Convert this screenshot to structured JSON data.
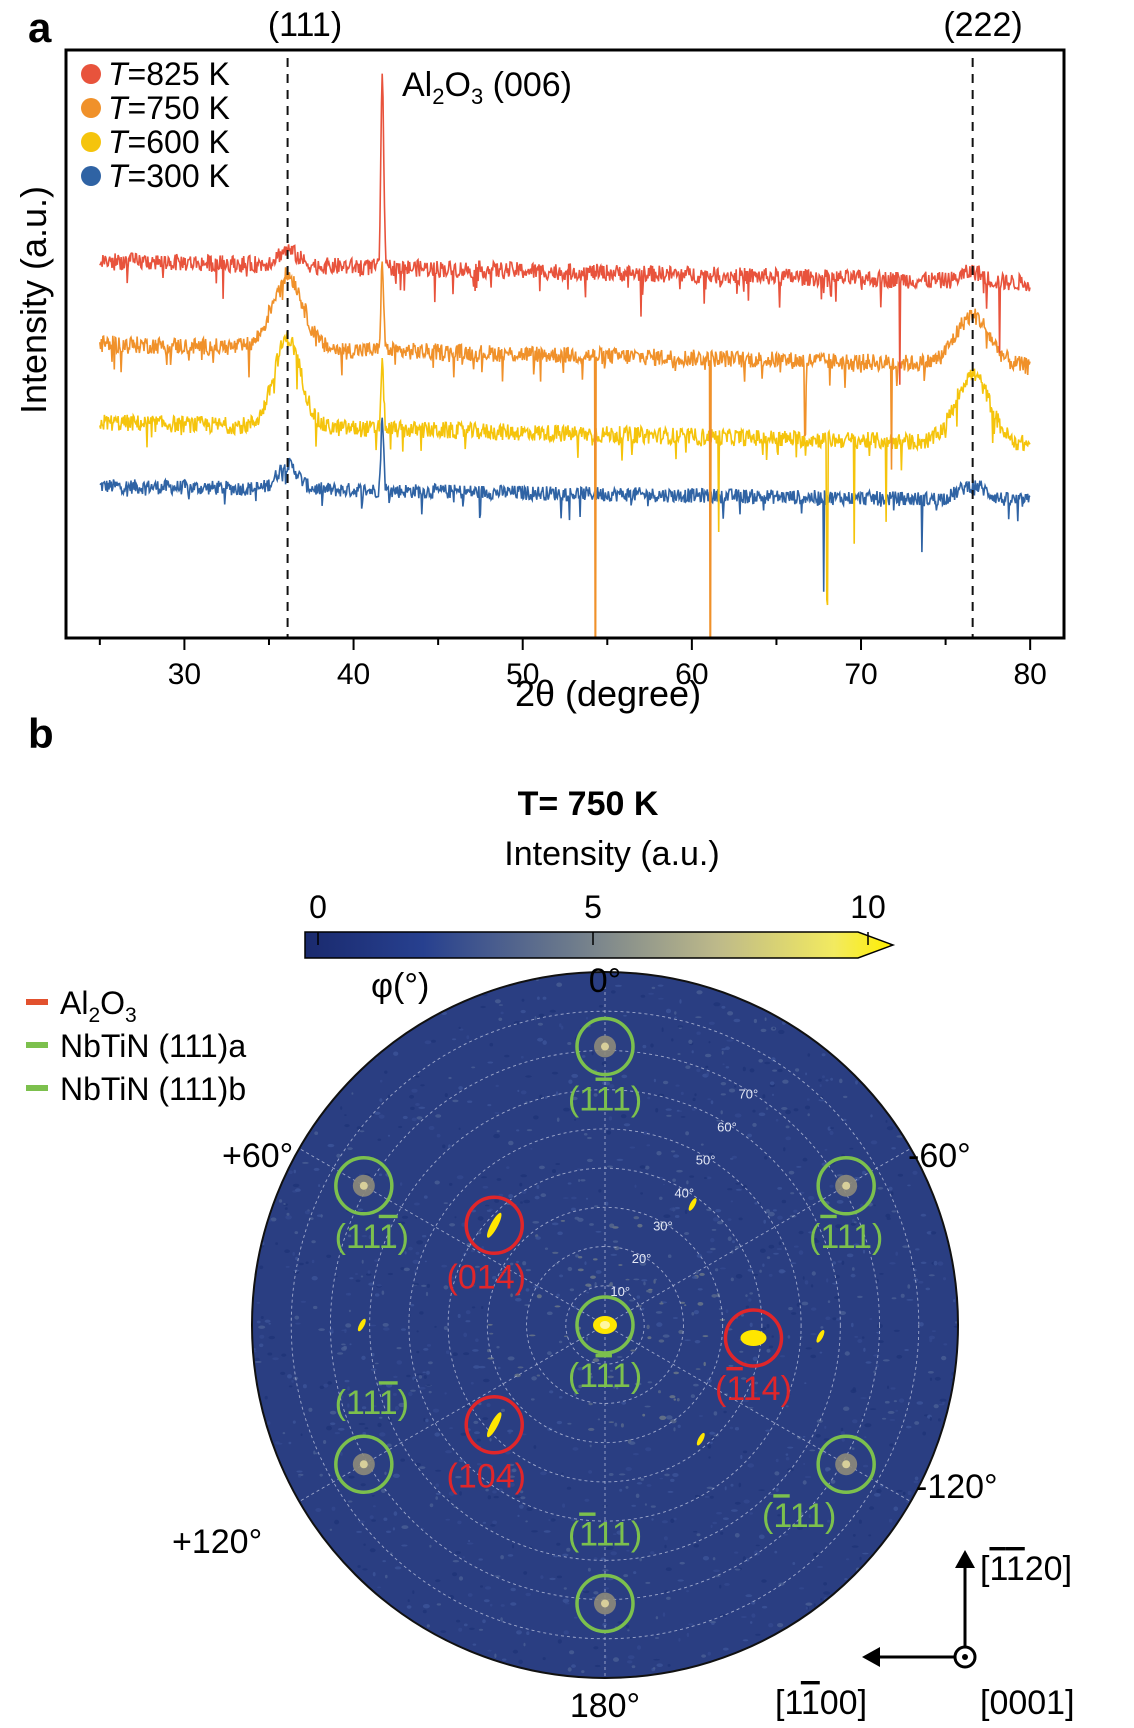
{
  "panel_a": {
    "label": "a",
    "ylabel": "Intensity (a.u.)",
    "xlabel": "2θ (degree)",
    "peak_label_111": "(111)",
    "peak_label_222": "(222)",
    "substrate_peak": {
      "base": "Al",
      "sub1": "2",
      "mid": "O",
      "sub2": "3",
      "tail": " (006)"
    }
  },
  "chart_data": [
    {
      "type": "line",
      "title": "",
      "xlabel": "2θ (degree)",
      "ylabel": "Intensity (a.u.)",
      "xlim": [
        23,
        82
      ],
      "xticks": [
        30,
        40,
        50,
        60,
        70,
        80
      ],
      "yticks_visible": false,
      "reference_lines": [
        {
          "x": 36.1,
          "label": "(111)"
        },
        {
          "x": 76.6,
          "label": "(222)"
        }
      ],
      "legend": "top-left",
      "series": [
        {
          "name": "T=825 K",
          "italic_prefix": "T",
          "rest": "=825 K",
          "color": "#e8533c",
          "baseline": 6.2,
          "slope": -0.45,
          "noise": 0.35,
          "peaks": [
            {
              "x": 36.1,
              "h": 0.3,
              "w": 0.6
            },
            {
              "x": 41.7,
              "h": 4.0,
              "w": 0.08
            },
            {
              "x": 76.6,
              "h": 0.2,
              "w": 0.6
            }
          ],
          "dips": [
            {
              "x": 72.3,
              "d": 2.0
            },
            {
              "x": 78.2,
              "d": 1.4
            },
            {
              "x": 57.0,
              "d": 0.9
            }
          ]
        },
        {
          "name": "T=750 K",
          "italic_prefix": "T",
          "rest": "=750 K",
          "color": "#f0912a",
          "baseline": 4.5,
          "slope": -0.45,
          "noise": 0.35,
          "peaks": [
            {
              "x": 36.1,
              "h": 1.5,
              "w": 0.9
            },
            {
              "x": 41.7,
              "h": 1.8,
              "w": 0.08
            },
            {
              "x": 76.6,
              "h": 1.0,
              "w": 1.0
            }
          ],
          "dips": [
            {
              "x": 54.3,
              "d": 8.6
            },
            {
              "x": 61.1,
              "d": 8.2
            },
            {
              "x": 66.7,
              "d": 1.6
            },
            {
              "x": 71.8,
              "d": 2.2
            }
          ]
        },
        {
          "name": "T=600 K",
          "italic_prefix": "T",
          "rest": "=600 K",
          "color": "#f5c40c",
          "baseline": 2.9,
          "slope": -0.45,
          "noise": 0.35,
          "peaks": [
            {
              "x": 36.1,
              "h": 1.8,
              "w": 0.8
            },
            {
              "x": 41.7,
              "h": 1.3,
              "w": 0.08
            },
            {
              "x": 76.6,
              "h": 1.4,
              "w": 1.0
            }
          ],
          "dips": [
            {
              "x": 61.6,
              "d": 2.0
            },
            {
              "x": 68.0,
              "d": 3.2
            },
            {
              "x": 69.6,
              "d": 2.2
            },
            {
              "x": 71.5,
              "d": 1.8
            }
          ]
        },
        {
          "name": "T=300 K",
          "italic_prefix": "T",
          "rest": "=300 K",
          "color": "#2f63a4",
          "baseline": 1.6,
          "slope": -0.3,
          "noise": 0.3,
          "peaks": [
            {
              "x": 36.1,
              "h": 0.5,
              "w": 0.6
            },
            {
              "x": 41.7,
              "h": 1.5,
              "w": 0.08
            },
            {
              "x": 76.6,
              "h": 0.3,
              "w": 0.8
            }
          ],
          "dips": [
            {
              "x": 67.8,
              "d": 1.8
            },
            {
              "x": 73.6,
              "d": 1.2
            }
          ]
        }
      ]
    },
    {
      "type": "heatmap",
      "subtype": "pole-figure",
      "title": "T= 750 K",
      "colorbar_label": "Intensity (a.u.)",
      "colorbar_range": [
        0,
        10
      ],
      "colorbar_ticks": [
        "0",
        "5",
        "10"
      ],
      "colormap": [
        "#1a2a6e",
        "#27408f",
        "#6c7a8c",
        "#bdb98a",
        "#f2ea60",
        "#ffee00"
      ],
      "background_color": "#2a3e82",
      "rotation_label": "φ(°)",
      "psi_ring_labels": [
        "10°",
        "20°",
        "30°",
        "40°",
        "50°",
        "60°",
        "70°"
      ],
      "phi_labels": {
        "top": "0°",
        "left60": "+60°",
        "right60": "-60°",
        "left120": "+120°",
        "right120": "-120°",
        "bottom": "180°"
      },
      "legend": "top-left",
      "legend_items": [
        {
          "label_base": "Al",
          "sub1": "2",
          "mid": "O",
          "sub2": "3",
          "color": "#e2512e"
        },
        {
          "label": "NbTiN (111)a",
          "color": "#7cc04d"
        },
        {
          "label": "NbTiN (111)b",
          "color": "#7cc04d"
        }
      ],
      "poles": [
        {
          "family": "NbTiN",
          "label_html": "(1<tspan text-decoration='overline'>1</tspan>1)",
          "label_plain": "(111)",
          "psi": 71,
          "phi": 0,
          "circle": "green"
        },
        {
          "family": "NbTiN",
          "label_html": "(11<tspan text-decoration='overline'>1</tspan>)",
          "label_plain": "(111)",
          "psi": 71,
          "phi": 60,
          "circle": "green"
        },
        {
          "family": "NbTiN",
          "label_html": "(<tspan text-decoration='overline'>1</tspan>11)",
          "label_plain": "(111)",
          "psi": 71,
          "phi": -60,
          "circle": "green"
        },
        {
          "family": "NbTiN",
          "label_html": "(1<tspan text-decoration='overline'>1</tspan>1)",
          "label_plain": "(111)",
          "psi": 0,
          "phi": 0,
          "circle": "green"
        },
        {
          "family": "NbTiN",
          "label_html": "(11<tspan text-decoration='overline'>1</tspan>)",
          "label_plain": "(111)",
          "psi": 71,
          "phi": 120,
          "circle": "green"
        },
        {
          "family": "NbTiN",
          "label_html": "(<tspan text-decoration='overline'>1</tspan>11)",
          "label_plain": "(111)",
          "psi": 71,
          "phi": -120,
          "circle": "green"
        },
        {
          "family": "NbTiN",
          "label_html": "(<tspan text-decoration='overline'>1</tspan>11)",
          "label_plain": "(111)",
          "psi": 71,
          "phi": 180,
          "circle": "green"
        },
        {
          "family": "Al2O3",
          "label_html": "(014)",
          "label_plain": "(014)",
          "psi": 38,
          "phi": 48,
          "circle": "red"
        },
        {
          "family": "Al2O3",
          "label_html": "(<tspan text-decoration='overline'>1</tspan>14)",
          "label_plain": "(114)",
          "psi": 38,
          "phi": -95,
          "circle": "red"
        },
        {
          "family": "Al2O3",
          "label_html": "(104)",
          "label_plain": "(104)",
          "psi": 38,
          "phi": 132,
          "circle": "red"
        }
      ],
      "axes_labels": {
        "up": "[1̄ 1̄ 20]",
        "left": "[11̄0 0]",
        "out": "[0001]"
      }
    }
  ],
  "panel_b": {
    "label": "b",
    "axes_up_html": "[<tspan text-decoration='overline'>1</tspan><tspan text-decoration='overline'>1</tspan>20]",
    "axes_left_html": "[1<tspan text-decoration='overline'>1</tspan>00]",
    "axes_out": "[0001]"
  }
}
